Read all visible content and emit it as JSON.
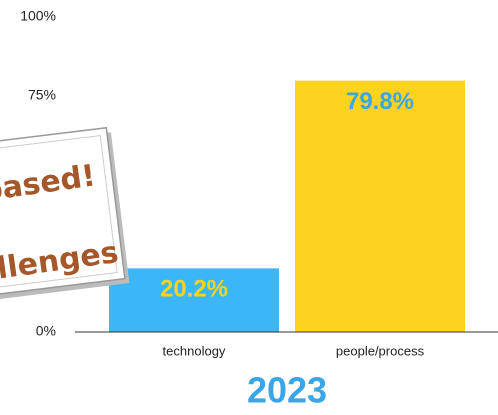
{
  "chart_data": {
    "type": "bar",
    "categories": [
      "technology",
      "people/process"
    ],
    "values": [
      20.2,
      79.8
    ],
    "value_labels": [
      "20.2%",
      "79.8%"
    ],
    "colors": [
      "#3bb6f6",
      "#fdd31f"
    ],
    "value_label_colors": [
      "#fdd31f",
      "#3aa6e8"
    ],
    "x_label": "2023",
    "ylim": [
      0,
      100
    ],
    "yticks": [
      {
        "value": 0,
        "label": "0%"
      },
      {
        "value": 75,
        "label": "75%"
      },
      {
        "value": 100,
        "label": "100%"
      }
    ],
    "annotations": [
      "based!",
      "llenges"
    ]
  }
}
